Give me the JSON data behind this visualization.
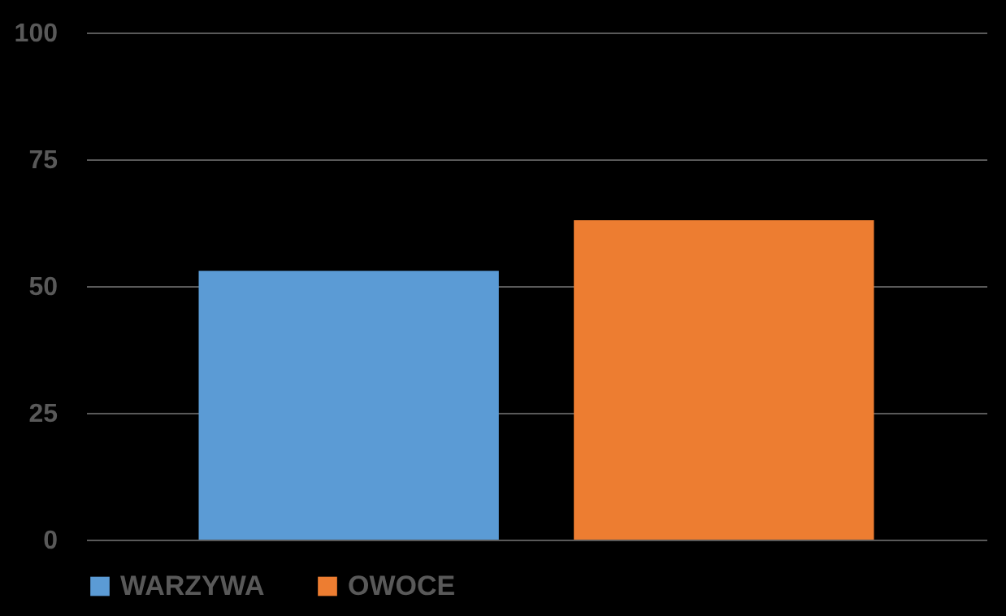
{
  "chart_data": {
    "type": "bar",
    "categories": [
      null
    ],
    "series": [
      {
        "name": "WARZYWA",
        "color": "#5b9bd5",
        "values": [
          53
        ]
      },
      {
        "name": "OWOCE",
        "color": "#ed7d31",
        "values": [
          63
        ]
      }
    ],
    "ylim": [
      0,
      100
    ],
    "yticks": [
      0,
      25,
      50,
      75,
      100
    ],
    "grid": "y",
    "legend": "bottom"
  }
}
